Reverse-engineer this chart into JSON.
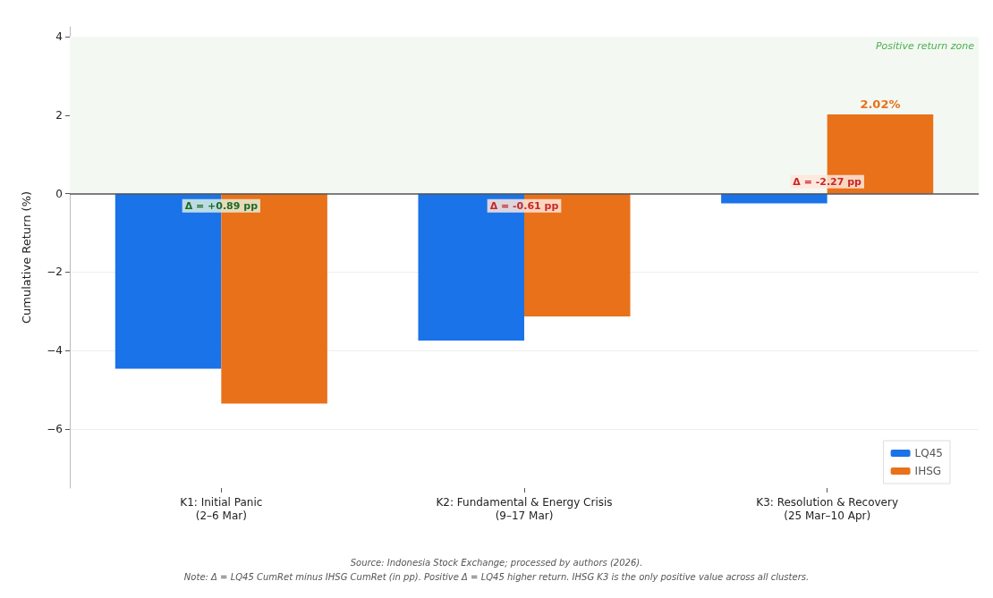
{
  "chart_data": {
    "type": "bar",
    "categories": [
      "K1: Initial Panic\n(2–6 Mar)",
      "K2: Fundamental & Energy Crisis\n(9–17 Mar)",
      "K3: Resolution & Recovery\n(25 Mar–10 Apr)"
    ],
    "series": [
      {
        "name": "LQ45",
        "color": "#1a73e8",
        "values": [
          -4.46,
          -3.74,
          -0.25
        ]
      },
      {
        "name": "IHSG",
        "color": "#e8711a",
        "values": [
          -5.35,
          -3.13,
          2.02
        ],
        "value_labels": [
          null,
          null,
          "2.02%"
        ]
      }
    ],
    "ylabel": "Cumulative Return (%)",
    "ylim": [
      -7.5,
      4.25
    ],
    "yticks": [
      -6,
      -4,
      -2,
      0,
      2,
      4
    ],
    "grid": "y",
    "legend": "bottom right",
    "ref_lines": [
      {
        "axis": "y",
        "value": 0,
        "color": "#555555"
      }
    ],
    "bands": [
      {
        "axis": "y",
        "from": 0,
        "to": 4,
        "label": "Positive return zone",
        "color": "#f3f9f2"
      }
    ],
    "annotations": [
      {
        "text": "Δ = +0.89 pp",
        "x": "K1: Initial Panic\n(2–6 Mar)",
        "y": 0
      },
      {
        "text": "Δ = -0.61 pp",
        "x": "K2: Fundamental & Energy Crisis\n(9–17 Mar)",
        "y": 0
      },
      {
        "text": "Δ = -2.27 pp",
        "x": "K3: Resolution & Recovery\n(25 Mar–10 Apr)",
        "y": 0
      },
      "Source: Indonesia Stock Exchange; processed by authors (2026).",
      "Note: Δ = LQ45 CumRet minus IHSG CumRet (in pp). Positive Δ = LQ45 higher return. IHSG K3 is the only positive value across all clusters."
    ]
  }
}
